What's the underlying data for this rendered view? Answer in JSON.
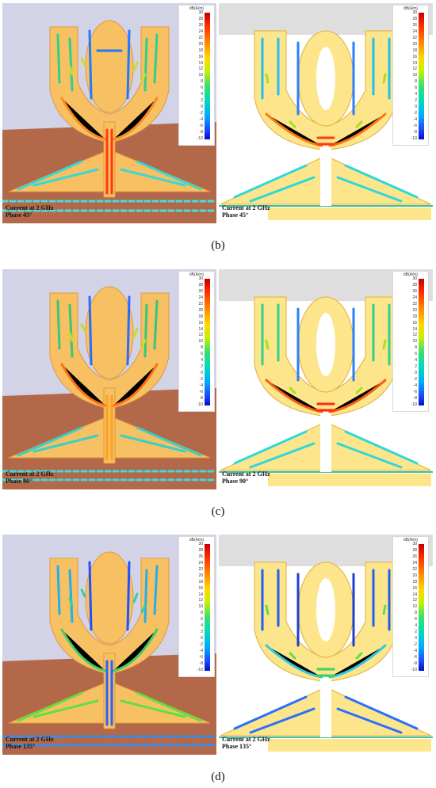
{
  "captions": [
    "(b)",
    "(c)",
    "(d)"
  ],
  "rows": [
    {
      "left_label": [
        "Current at 2 GHz",
        "Phase 45°"
      ],
      "right_label": [
        "Current at 2 GHz",
        "Phase 45°"
      ]
    },
    {
      "left_label": [
        "Current at 2 GHz",
        "Phase 90°"
      ],
      "right_label": [
        "Current at 2 GHz",
        "Phase 90°"
      ]
    },
    {
      "left_label": [
        "Current at 2 GHz",
        "Phase 135°"
      ],
      "right_label": [
        "Current at 2 GHz",
        "Phase 135°"
      ]
    }
  ],
  "colorbar": {
    "unit": "dB(A/m)",
    "ticks": [
      "30",
      "28",
      "26",
      "24",
      "22",
      "20",
      "18",
      "16",
      "14",
      "12",
      "10",
      "8",
      "6",
      "4",
      "2",
      "0",
      "-2",
      "-4",
      "-6",
      "-8",
      "-10"
    ]
  },
  "colors": {
    "antenna_fill": "#f7c062",
    "front_fill": "#fce58a",
    "ground": "#b4684a",
    "background": "#c9cbe0"
  }
}
